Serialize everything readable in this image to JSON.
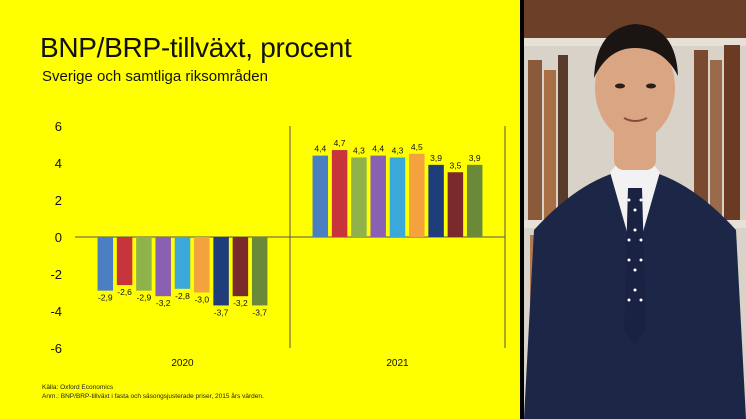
{
  "header": {
    "title": "BNP/BRP-tillväxt, procent",
    "subtitle": "Sverige och samtliga riksområden"
  },
  "footer": {
    "source": "Källa: Oxford Economics",
    "note": "Anm.: BNP/BRP-tillväxt i fasta och säsongsjusterade priser, 2015 års värden."
  },
  "colors": {
    "background": "#ffff00",
    "bars": [
      "#4a7fc1",
      "#c8343c",
      "#8fb24a",
      "#8a60b2",
      "#3aa8d8",
      "#f4a23e",
      "#1e3d7a",
      "#7a2a2a",
      "#6a8a3a"
    ]
  },
  "chart_data": {
    "type": "bar",
    "categories": [
      "2020",
      "2021"
    ],
    "series_values": [
      [
        -2.9,
        -2.6,
        -2.9,
        -3.2,
        -2.8,
        -3.0,
        -3.7,
        -3.2,
        -3.7
      ],
      [
        4.4,
        4.7,
        4.3,
        4.4,
        4.3,
        4.5,
        3.9,
        3.5,
        3.9
      ]
    ],
    "value_labels": [
      [
        "-2,9",
        "-2,6",
        "-2,9",
        "-3,2",
        "-2,8",
        "-3,0",
        "-3,7",
        "-3,2",
        "-3,7"
      ],
      [
        "4,4",
        "4,7",
        "4,3",
        "4,4",
        "4,3",
        "4,5",
        "3,9",
        "3,5",
        "3,9"
      ]
    ],
    "ylim": [
      -6,
      6
    ],
    "yticks": [
      "6",
      "4",
      "2",
      "0",
      "-2",
      "-4",
      "-6"
    ],
    "ytick_values": [
      6,
      4,
      2,
      0,
      -2,
      -4,
      -6
    ],
    "grid": false,
    "legend": "none"
  },
  "photo": {
    "colors": {
      "suit": "#1c2748",
      "shirt": "#f2f2f2",
      "tie": "#1a2244",
      "skin": "#d9a582",
      "hair": "#1a1412",
      "shelf": "#6b3f28",
      "wall": "#d8d2c8"
    }
  }
}
